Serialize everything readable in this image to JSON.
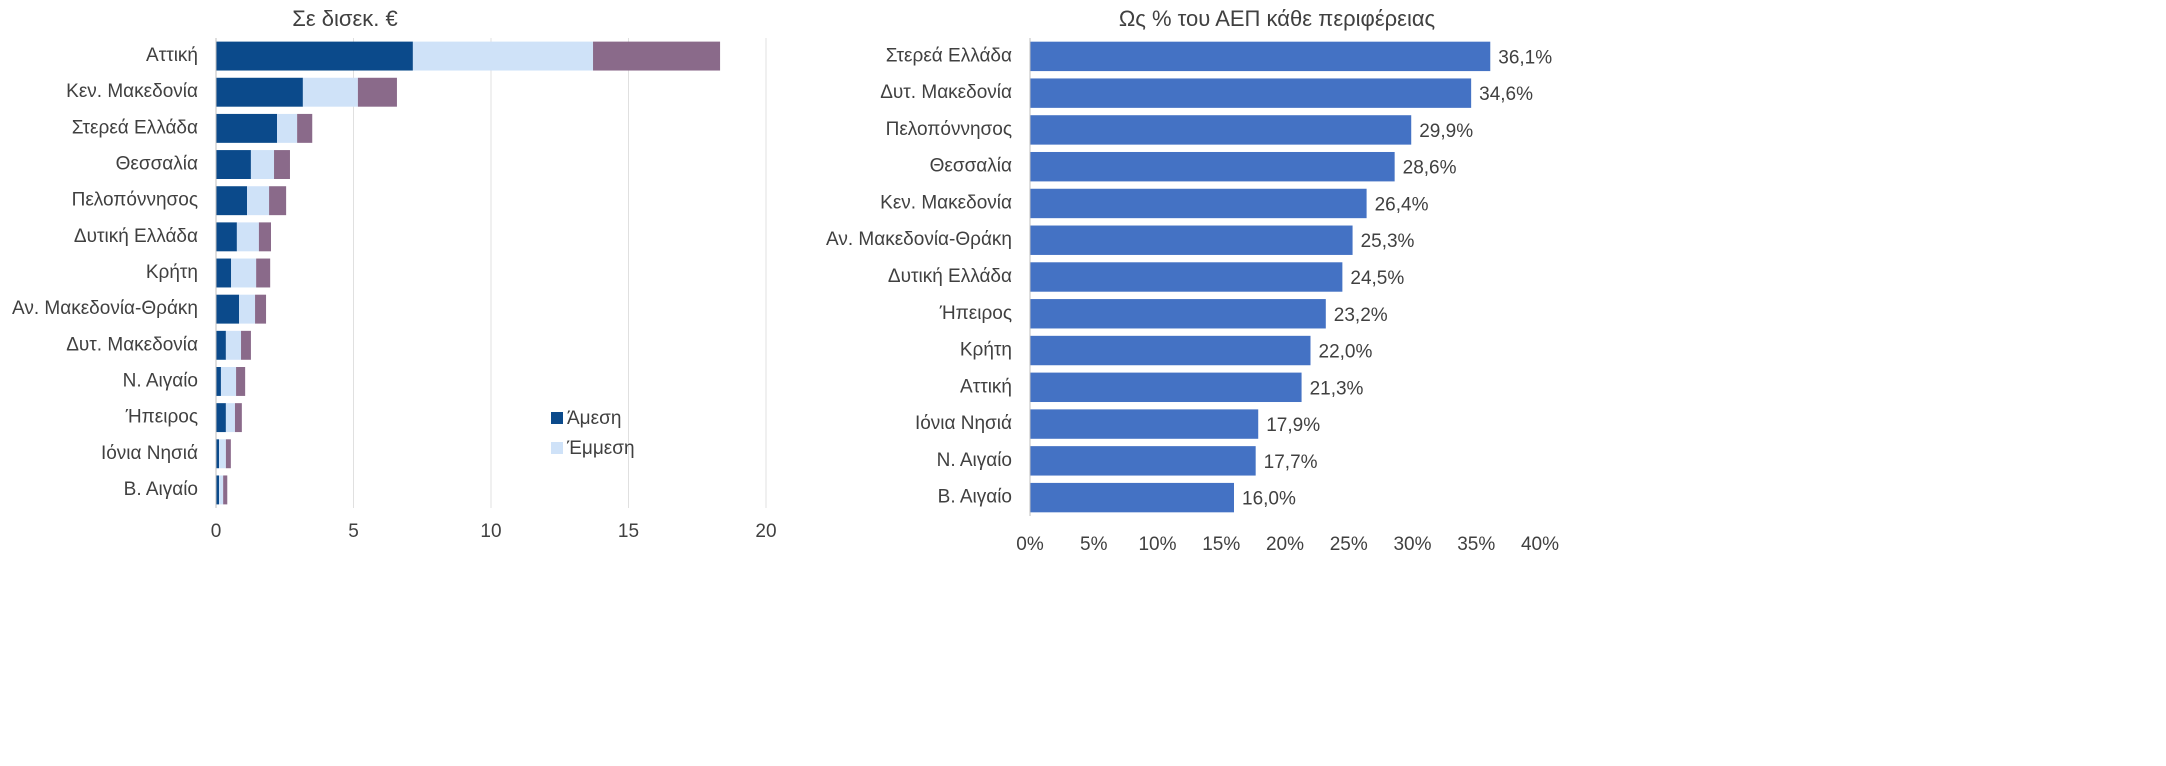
{
  "chart_data": [
    {
      "type": "stacked_bar_h",
      "title": "Σε δισεκ. €",
      "categories": [
        "Αττική",
        "Κεν. Μακεδονία",
        "Στερεά Ελλάδα",
        "Θεσσαλία",
        "Πελοπόννησος",
        "Δυτική Ελλάδα",
        "Κρήτη",
        "Αν. Μακεδονία-Θράκη",
        "Δυτ. Μακεδονία",
        "Ν. Αιγαίο",
        "Ήπειρος",
        "Ιόνια Νησιά",
        "Β. Αιγαίο"
      ],
      "series": [
        {
          "name": "Άμεση",
          "color": "#0b4a8b",
          "values": [
            7.16,
            3.16,
            2.22,
            1.27,
            1.13,
            0.76,
            0.55,
            0.84,
            0.36,
            0.18,
            0.36,
            0.11,
            0.11
          ]
        },
        {
          "name": "Έμμεση",
          "color": "#cfe2f8",
          "values": [
            6.55,
            2.0,
            0.73,
            0.84,
            0.8,
            0.8,
            0.91,
            0.58,
            0.55,
            0.55,
            0.33,
            0.25,
            0.15
          ]
        },
        {
          "color": "#8a6a8a",
          "values": [
            4.62,
            1.42,
            0.55,
            0.58,
            0.62,
            0.44,
            0.51,
            0.4,
            0.36,
            0.33,
            0.25,
            0.18,
            0.15
          ]
        }
      ],
      "xlim": [
        0,
        20
      ],
      "xticks": [
        0,
        5,
        10,
        15,
        20
      ],
      "grid": true,
      "legend": "lower right"
    },
    {
      "type": "bar_h",
      "title": "Ως % του ΑΕΠ κάθε περιφέρειας",
      "categories": [
        "Στερεά Ελλάδα",
        "Δυτ. Μακεδονία",
        "Πελοπόννησος",
        "Θεσσαλία",
        "Κεν. Μακεδονία",
        "Αν. Μακεδονία-Θράκη",
        "Δυτική Ελλάδα",
        "Ήπειρος",
        "Κρήτη",
        "Αττική",
        "Ιόνια Νησιά",
        "Ν. Αιγαίο",
        "Β. Αιγαίο"
      ],
      "values": [
        36.1,
        34.6,
        29.9,
        28.6,
        26.4,
        25.3,
        24.5,
        23.2,
        22.0,
        21.3,
        17.9,
        17.7,
        16.0
      ],
      "value_labels": [
        "36,1%",
        "34,6%",
        "29,9%",
        "28,6%",
        "26,4%",
        "25,3%",
        "24,5%",
        "23,2%",
        "22,0%",
        "21,3%",
        "17,9%",
        "17,7%",
        "16,0%"
      ],
      "color": "#4472c4",
      "xlim": [
        0,
        40
      ],
      "xticks": [
        {
          "value": 0,
          "label": "0%"
        },
        {
          "value": 5,
          "label": "5%"
        },
        {
          "value": 10,
          "label": "10%"
        },
        {
          "value": 15,
          "label": "15%"
        },
        {
          "value": 20,
          "label": "20%"
        },
        {
          "value": 25,
          "label": "25%"
        },
        {
          "value": 30,
          "label": "30%"
        },
        {
          "value": 35,
          "label": "35%"
        },
        {
          "value": 40,
          "label": "40%"
        }
      ],
      "grid": false
    }
  ]
}
